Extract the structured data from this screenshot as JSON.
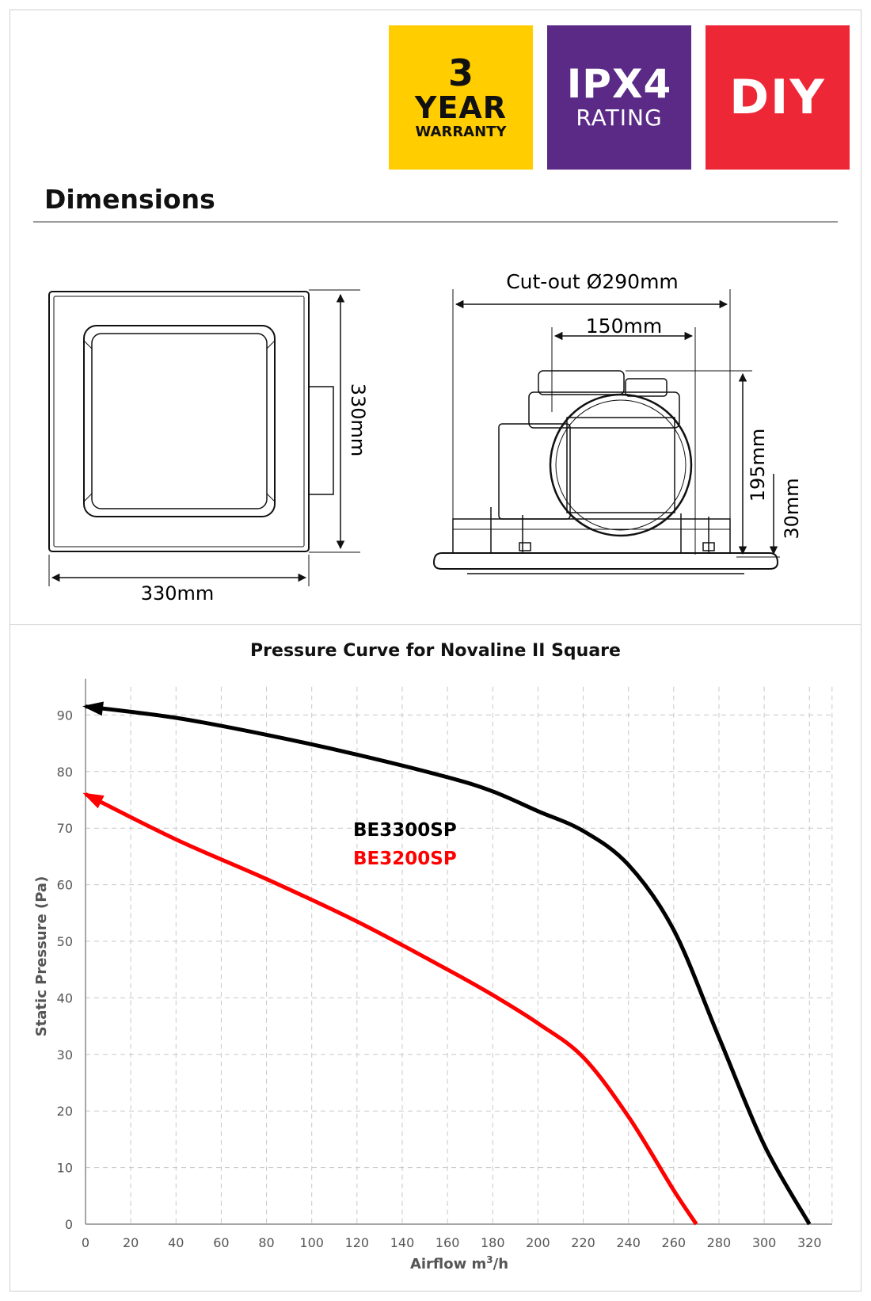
{
  "badges": {
    "warranty": {
      "number": "3",
      "word": "YEAR",
      "label": "WARRANTY",
      "color": "#ffcd00"
    },
    "rating": {
      "code": "IPX4",
      "label": "RATING",
      "color": "#5b2a86"
    },
    "diy": {
      "label": "DIY",
      "color": "#ee2737"
    }
  },
  "dimensions": {
    "title": "Dimensions",
    "front_height": "330mm",
    "front_width": "330mm",
    "cutout": "Cut-out Ø290mm",
    "spigot": "150mm",
    "body_height": "195mm",
    "grille_height": "30mm"
  },
  "chart_data": {
    "type": "line",
    "title": "Pressure Curve for Novaline II Square",
    "xlabel": "Airflow m³/h",
    "ylabel": "Static Pressure (Pa)",
    "xlim": [
      0,
      330
    ],
    "ylim": [
      0,
      95
    ],
    "xticks": [
      0,
      20,
      40,
      60,
      80,
      100,
      120,
      140,
      160,
      180,
      200,
      220,
      240,
      260,
      280,
      300,
      320
    ],
    "yticks": [
      0,
      10,
      20,
      30,
      40,
      50,
      60,
      70,
      80,
      90
    ],
    "grid": true,
    "legend_position": "center",
    "series": [
      {
        "name": "BE3300SP",
        "color": "#000000",
        "x": [
          0,
          40,
          80,
          120,
          160,
          180,
          200,
          220,
          240,
          260,
          280,
          300,
          320
        ],
        "y": [
          91.5,
          89.5,
          86.5,
          83,
          79,
          76.5,
          73,
          69.5,
          63.5,
          52,
          33,
          14,
          0
        ]
      },
      {
        "name": "BE3200SP",
        "color": "#ff0000",
        "x": [
          0,
          40,
          80,
          120,
          160,
          180,
          200,
          220,
          240,
          260,
          270
        ],
        "y": [
          76,
          68,
          61,
          53.5,
          45,
          40.5,
          35.5,
          29.5,
          19,
          6,
          0
        ]
      }
    ]
  }
}
